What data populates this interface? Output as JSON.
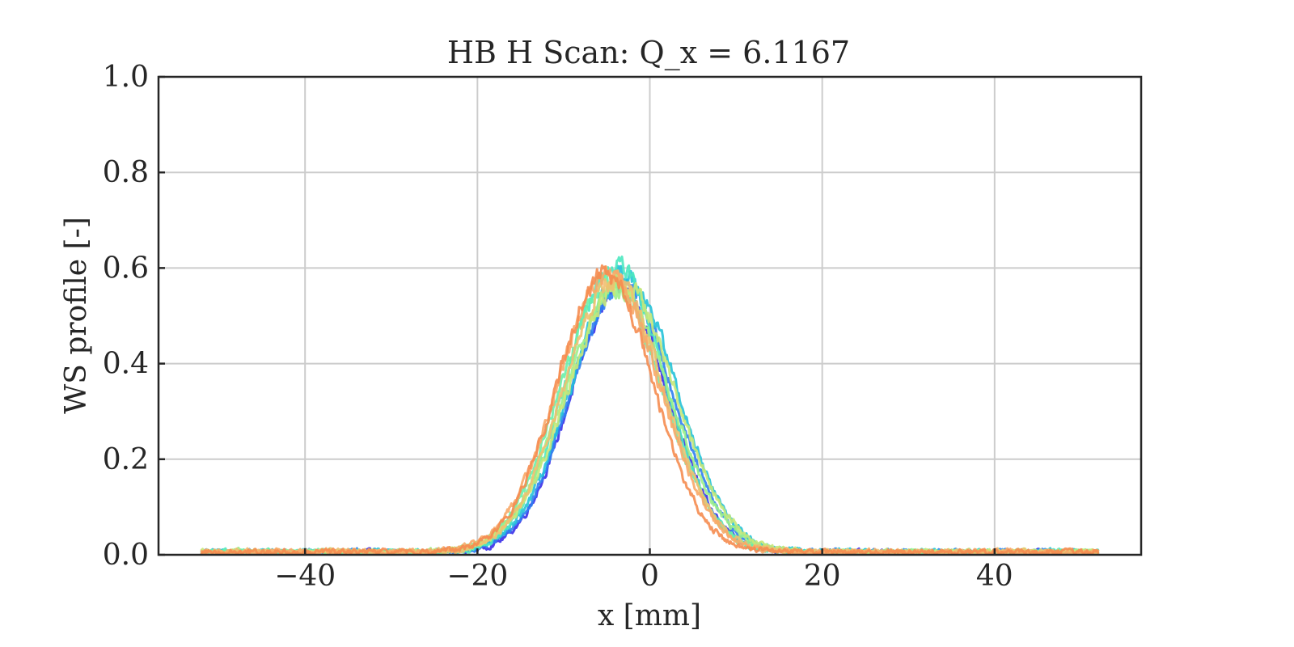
{
  "chart_data": {
    "type": "line",
    "title": "HB H Scan: Q_x = 6.1167",
    "xlabel": "x [mm]",
    "ylabel": "WS profile [-]",
    "xlim": [
      -57,
      57
    ],
    "ylim": [
      0,
      1.0
    ],
    "xticks": [
      -40,
      -20,
      0,
      20,
      40
    ],
    "xtick_labels": [
      "−40",
      "−20",
      "0",
      "20",
      "40"
    ],
    "yticks": [
      0,
      0.2,
      0.4,
      0.6,
      0.8,
      1.0
    ],
    "ytick_labels": [
      "0.0",
      "0.2",
      "0.4",
      "0.6",
      "0.8",
      "1.0"
    ],
    "grid": true,
    "x_range": [
      -52,
      52
    ],
    "series": [
      {
        "color": "#3a2fe8",
        "center": -3.5,
        "sigma": 5.6,
        "amplitude": 0.55,
        "baseline": 0.005
      },
      {
        "color": "#2f7ff0",
        "center": -3.2,
        "sigma": 5.8,
        "amplitude": 0.56,
        "baseline": 0.006
      },
      {
        "color": "#25c2d8",
        "center": -3.0,
        "sigma": 6.0,
        "amplitude": 0.58,
        "baseline": 0.006
      },
      {
        "color": "#4de8c0",
        "center": -4.0,
        "sigma": 5.7,
        "amplitude": 0.6,
        "baseline": 0.005
      },
      {
        "color": "#6af0a8",
        "center": -4.5,
        "sigma": 5.9,
        "amplitude": 0.57,
        "baseline": 0.005
      },
      {
        "color": "#9cf08a",
        "center": -3.8,
        "sigma": 6.1,
        "amplitude": 0.55,
        "baseline": 0.006
      },
      {
        "color": "#c8e878",
        "center": -3.3,
        "sigma": 6.2,
        "amplitude": 0.56,
        "baseline": 0.006
      },
      {
        "color": "#f0c070",
        "center": -4.2,
        "sigma": 5.8,
        "amplitude": 0.57,
        "baseline": 0.006
      },
      {
        "color": "#f8a868",
        "center": -4.8,
        "sigma": 5.9,
        "amplitude": 0.58,
        "baseline": 0.006
      },
      {
        "color": "#f58c50",
        "center": -5.2,
        "sigma": 5.6,
        "amplitude": 0.58,
        "baseline": 0.006
      }
    ]
  }
}
